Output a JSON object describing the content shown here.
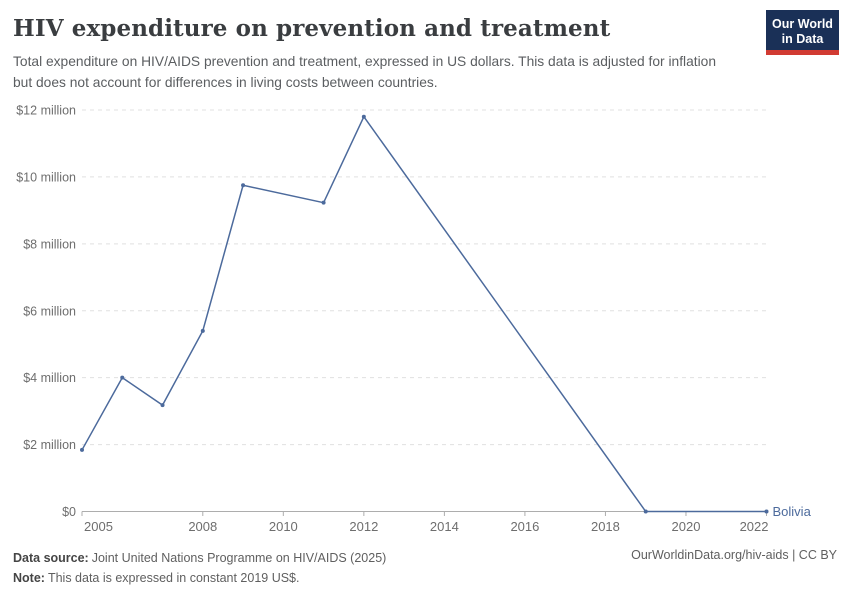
{
  "header": {
    "title": "HIV expenditure on prevention and treatment",
    "subtitle": "Total expenditure on HIV/AIDS prevention and treatment, expressed in US dollars. This data is adjusted for inflation but does not account for differences in living costs between countries."
  },
  "logo": {
    "line1": "Our World",
    "line2": "in Data",
    "bg_color": "#1a3057",
    "bar_color": "#d13b32"
  },
  "chart_data": {
    "type": "line",
    "title": "HIV expenditure on prevention and treatment",
    "xlabel": "",
    "ylabel": "",
    "unit": "constant 2019 US$",
    "xlim": [
      2005,
      2022
    ],
    "ylim": [
      0,
      12000000
    ],
    "grid": "horizontal-dashed",
    "legend_position": "end-of-line-label",
    "x_ticks": [
      2005,
      2008,
      2010,
      2012,
      2014,
      2016,
      2018,
      2020,
      2022
    ],
    "y_ticks": [
      {
        "value": 0,
        "label": "$0"
      },
      {
        "value": 2000000,
        "label": "$2 million"
      },
      {
        "value": 4000000,
        "label": "$4 million"
      },
      {
        "value": 6000000,
        "label": "$6 million"
      },
      {
        "value": 8000000,
        "label": "$8 million"
      },
      {
        "value": 10000000,
        "label": "$10 million"
      },
      {
        "value": 12000000,
        "label": "$12 million"
      }
    ],
    "series": [
      {
        "name": "Bolivia",
        "color": "#4C6A9C",
        "x": [
          2005,
          2006,
          2007,
          2008,
          2009,
          2011,
          2012,
          2019,
          2022
        ],
        "values": [
          1840000,
          4000000,
          3180000,
          5400000,
          9750000,
          9230000,
          11800000,
          0,
          0
        ]
      }
    ]
  },
  "footer": {
    "datasource_label": "Data source:",
    "datasource_text": "Joint United Nations Programme on HIV/AIDS (2025)",
    "note_label": "Note:",
    "note_text": "This data is expressed in constant 2019 US$.",
    "link": "OurWorldinData.org/hiv-aids | CC BY"
  },
  "colors": {
    "line": "#4C6A9C",
    "grid": "#e0e0e0",
    "axis": "#adadad",
    "tick_text": "#6e6e6e"
  }
}
